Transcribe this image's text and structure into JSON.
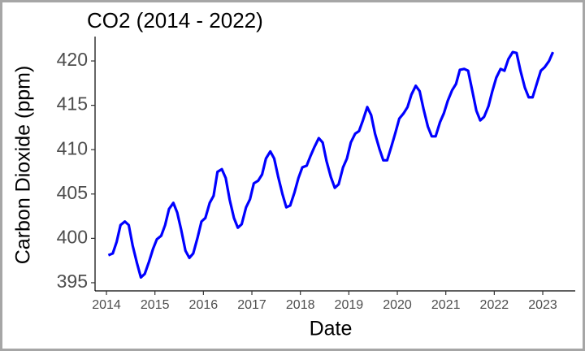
{
  "chart_data": {
    "type": "line",
    "title": "CO2 (2014 - 2022)",
    "x_label": "Date",
    "y_label": "Carbon Dioxide (ppm)",
    "x": [
      2014.04,
      2014.13,
      2014.21,
      2014.29,
      2014.38,
      2014.46,
      2014.54,
      2014.63,
      2014.71,
      2014.79,
      2014.88,
      2014.96,
      2015.04,
      2015.13,
      2015.21,
      2015.29,
      2015.38,
      2015.46,
      2015.54,
      2015.63,
      2015.71,
      2015.79,
      2015.88,
      2015.96,
      2016.04,
      2016.13,
      2016.21,
      2016.29,
      2016.38,
      2016.46,
      2016.54,
      2016.63,
      2016.71,
      2016.79,
      2016.88,
      2016.96,
      2017.04,
      2017.13,
      2017.21,
      2017.29,
      2017.38,
      2017.46,
      2017.54,
      2017.63,
      2017.71,
      2017.79,
      2017.88,
      2017.96,
      2018.04,
      2018.13,
      2018.21,
      2018.29,
      2018.38,
      2018.46,
      2018.54,
      2018.63,
      2018.71,
      2018.79,
      2018.88,
      2018.96,
      2019.04,
      2019.13,
      2019.21,
      2019.29,
      2019.38,
      2019.46,
      2019.54,
      2019.63,
      2019.71,
      2019.79,
      2019.88,
      2019.96,
      2020.04,
      2020.13,
      2020.21,
      2020.29,
      2020.38,
      2020.46,
      2020.54,
      2020.63,
      2020.71,
      2020.79,
      2020.88,
      2020.96,
      2021.04,
      2021.13,
      2021.21,
      2021.29,
      2021.38,
      2021.46,
      2021.54,
      2021.63,
      2021.71,
      2021.79,
      2021.88,
      2021.96,
      2022.04,
      2022.13,
      2022.21,
      2022.29,
      2022.38,
      2022.46,
      2022.54,
      2022.63,
      2022.71,
      2022.79,
      2022.88,
      2022.96,
      2023.04,
      2023.13,
      2023.21
    ],
    "series": [
      {
        "name": "CO2",
        "color": "#0000ff",
        "values": [
          398.1,
          398.3,
          399.6,
          401.5,
          401.9,
          401.5,
          399.2,
          397.2,
          395.6,
          396.0,
          397.4,
          398.8,
          399.9,
          400.3,
          401.5,
          403.3,
          404.0,
          402.9,
          401.0,
          398.6,
          397.8,
          398.3,
          400.1,
          401.9,
          402.3,
          404.0,
          404.8,
          407.5,
          407.8,
          406.8,
          404.4,
          402.3,
          401.2,
          401.6,
          403.5,
          404.4,
          406.2,
          406.5,
          407.2,
          409.0,
          409.8,
          409.0,
          407.0,
          405.0,
          403.5,
          403.7,
          405.2,
          406.8,
          408.0,
          408.2,
          409.3,
          410.3,
          411.3,
          410.8,
          408.7,
          406.9,
          405.7,
          406.1,
          408.0,
          409.0,
          410.8,
          411.8,
          412.1,
          413.3,
          414.8,
          413.9,
          411.8,
          410.1,
          408.8,
          408.8,
          410.4,
          411.9,
          413.5,
          414.1,
          414.8,
          416.2,
          417.2,
          416.6,
          414.6,
          412.6,
          411.5,
          411.5,
          413.1,
          414.1,
          415.5,
          416.7,
          417.4,
          419.0,
          419.1,
          418.9,
          416.8,
          414.4,
          413.3,
          413.7,
          414.9,
          416.6,
          418.1,
          419.1,
          418.9,
          420.2,
          421.0,
          420.9,
          418.9,
          417.0,
          415.9,
          415.9,
          417.5,
          418.9,
          419.3,
          420.0,
          421.0
        ]
      }
    ],
    "xlim": [
      2013.765,
      2023.67
    ],
    "ylim": [
      394.08,
      422.75
    ],
    "xticks": [
      2014,
      2015,
      2016,
      2017,
      2018,
      2019,
      2020,
      2021,
      2022,
      2023
    ],
    "yticks": [
      395,
      400,
      405,
      410,
      415,
      420
    ],
    "grid": false
  }
}
